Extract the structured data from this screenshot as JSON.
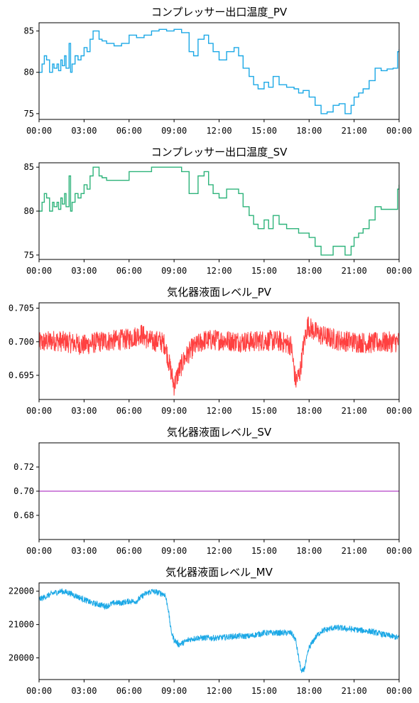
{
  "chart_data": [
    {
      "type": "line",
      "title": "コンプレッサー出口温度_PV",
      "xticks": [
        "00:00",
        "03:00",
        "06:00",
        "09:00",
        "12:00",
        "15:00",
        "18:00",
        "21:00",
        "00:00"
      ],
      "ylim": [
        74.3,
        86
      ],
      "yticks": [
        75,
        80,
        85
      ],
      "ytick_labels": [
        "75",
        "80",
        "85"
      ],
      "series": [
        {
          "color": "#1ba8e6",
          "kind": "step",
          "x": [
            0,
            0.2,
            0.35,
            0.5,
            0.7,
            0.9,
            1.0,
            1.2,
            1.3,
            1.45,
            1.55,
            1.7,
            1.8,
            2.0,
            2.1,
            2.2,
            2.4,
            2.6,
            2.8,
            3.0,
            3.2,
            3.4,
            3.6,
            4.0,
            4.2,
            4.5,
            5.0,
            5.5,
            6.0,
            6.5,
            7.0,
            7.5,
            8.0,
            8.5,
            9.0,
            9.5,
            10.0,
            10.3,
            10.6,
            11.0,
            11.3,
            11.6,
            12.0,
            12.5,
            13.0,
            13.3,
            13.6,
            14.0,
            14.3,
            14.6,
            15.0,
            15.3,
            15.6,
            16.0,
            16.5,
            17.0,
            17.3,
            17.6,
            18.0,
            18.4,
            18.8,
            19.2,
            19.6,
            20.0,
            20.4,
            20.8,
            21.0,
            21.3,
            21.6,
            22.0,
            22.4,
            22.8,
            23.2,
            23.6,
            23.9,
            24.0
          ],
          "y": [
            80,
            81,
            82,
            81.5,
            80,
            81,
            80.5,
            81,
            80.2,
            81.5,
            80.8,
            82,
            80.5,
            83.5,
            80,
            81,
            82,
            81.5,
            82,
            83,
            82.5,
            84,
            85,
            84,
            83.8,
            83.5,
            83.2,
            83.5,
            84.5,
            84.2,
            84.5,
            85,
            85.2,
            85,
            85.2,
            84.8,
            82.5,
            82,
            84,
            84.5,
            83.5,
            82.5,
            81.5,
            82.5,
            83,
            82,
            80.5,
            79.5,
            78.5,
            78,
            78.8,
            78.2,
            79.5,
            78.5,
            78.2,
            78,
            77.5,
            77.8,
            77,
            76,
            75,
            75.2,
            76,
            76.2,
            75,
            76,
            77,
            77.5,
            78,
            79,
            80.5,
            80.2,
            80.4,
            80.5,
            82.5,
            82.8
          ]
        }
      ]
    },
    {
      "type": "line",
      "title": "コンプレッサー出口温度_SV",
      "xticks": [
        "00:00",
        "03:00",
        "06:00",
        "09:00",
        "12:00",
        "15:00",
        "18:00",
        "21:00",
        "00:00"
      ],
      "ylim": [
        74.5,
        85.5
      ],
      "yticks": [
        75,
        80,
        85
      ],
      "ytick_labels": [
        "75",
        "80",
        "85"
      ],
      "series": [
        {
          "color": "#2db37a",
          "kind": "step",
          "x": [
            0,
            0.2,
            0.35,
            0.5,
            0.7,
            0.9,
            1.0,
            1.2,
            1.3,
            1.45,
            1.55,
            1.7,
            1.8,
            2.0,
            2.1,
            2.2,
            2.4,
            2.6,
            2.8,
            3.0,
            3.2,
            3.4,
            3.6,
            4.0,
            4.2,
            4.5,
            5.0,
            5.5,
            6.0,
            6.5,
            7.0,
            7.5,
            8.0,
            8.5,
            9.0,
            9.5,
            10.0,
            10.3,
            10.6,
            11.0,
            11.3,
            11.6,
            12.0,
            12.5,
            13.0,
            13.3,
            13.6,
            14.0,
            14.3,
            14.6,
            15.0,
            15.3,
            15.6,
            16.0,
            16.5,
            17.0,
            17.3,
            17.6,
            18.0,
            18.4,
            18.8,
            19.2,
            19.6,
            20.0,
            20.4,
            20.8,
            21.0,
            21.3,
            21.6,
            22.0,
            22.4,
            22.8,
            23.2,
            23.6,
            23.9,
            24.0
          ],
          "y": [
            80,
            81,
            82,
            81.5,
            80,
            81,
            80.5,
            81,
            80.2,
            81.5,
            80.8,
            82,
            80.5,
            84,
            80,
            81,
            82,
            81.5,
            82,
            83,
            82.5,
            84,
            85,
            84,
            83.8,
            83.5,
            83.5,
            83.5,
            84.5,
            84.5,
            84.5,
            85,
            85,
            85,
            85,
            84.5,
            82,
            82,
            84,
            84.5,
            83,
            82,
            81.5,
            82.5,
            82.5,
            82,
            80.5,
            79.5,
            78.5,
            78,
            79,
            78,
            79.5,
            78.5,
            78,
            78,
            77.5,
            77.5,
            77,
            76,
            75,
            75,
            76,
            76,
            75,
            76,
            77,
            77.5,
            78,
            79,
            80.5,
            80.2,
            80.2,
            80.2,
            82.5,
            83
          ]
        }
      ]
    },
    {
      "type": "line",
      "title": "気化器液面レベル_PV",
      "xticks": [
        "00:00",
        "03:00",
        "06:00",
        "09:00",
        "12:00",
        "15:00",
        "18:00",
        "21:00",
        "00:00"
      ],
      "ylim": [
        0.6914,
        0.7058
      ],
      "yticks": [
        0.695,
        0.7,
        0.705
      ],
      "ytick_labels": [
        "0.695",
        "0.700",
        "0.705"
      ],
      "series": [
        {
          "color": "#ff4040",
          "kind": "noisy",
          "noise": 0.0016,
          "x": [
            0,
            1,
            2,
            3,
            4,
            5,
            6,
            6.8,
            7.2,
            7.6,
            8.0,
            8.4,
            8.7,
            8.9,
            9.0,
            9.3,
            9.7,
            10.2,
            11,
            12,
            13,
            14,
            15,
            16,
            16.8,
            17.1,
            17.4,
            17.6,
            17.9,
            18.2,
            18.6,
            19,
            20,
            21,
            22,
            23,
            24
          ],
          "y": [
            0.6998,
            0.7002,
            0.6999,
            0.6995,
            0.7,
            0.7002,
            0.7004,
            0.7012,
            0.7004,
            0.7,
            0.7002,
            0.6996,
            0.6965,
            0.6945,
            0.6935,
            0.6955,
            0.6975,
            0.699,
            0.7002,
            0.7003,
            0.7001,
            0.7,
            0.7002,
            0.7001,
            0.6995,
            0.694,
            0.6955,
            0.699,
            0.7025,
            0.7018,
            0.7012,
            0.7008,
            0.7002,
            0.7,
            0.6998,
            0.6999,
            0.7
          ]
        }
      ]
    },
    {
      "type": "line",
      "title": "気化器液面レベル_SV",
      "xticks": [
        "00:00",
        "03:00",
        "06:00",
        "09:00",
        "12:00",
        "15:00",
        "18:00",
        "21:00",
        "00:00"
      ],
      "ylim": [
        0.66,
        0.74
      ],
      "yticks": [
        0.68,
        0.7,
        0.72
      ],
      "ytick_labels": [
        "0.68",
        "0.70",
        "0.72"
      ],
      "series": [
        {
          "color": "#c060d0",
          "kind": "line",
          "x": [
            0,
            24
          ],
          "y": [
            0.7,
            0.7
          ]
        }
      ]
    },
    {
      "type": "line",
      "title": "気化器液面レベル_MV",
      "xticks": [
        "00:00",
        "03:00",
        "06:00",
        "09:00",
        "12:00",
        "15:00",
        "18:00",
        "21:00",
        "00:00"
      ],
      "ylim": [
        19350,
        22250
      ],
      "yticks": [
        20000,
        21000,
        22000
      ],
      "ytick_labels": [
        "20000",
        "21000",
        "22000"
      ],
      "series": [
        {
          "color": "#1ba8e6",
          "kind": "noisy",
          "noise": 90,
          "x": [
            0,
            0.5,
            1.0,
            1.5,
            2.0,
            2.5,
            3.0,
            3.5,
            4.0,
            4.5,
            5.0,
            5.5,
            6.0,
            6.5,
            7.0,
            7.5,
            8.0,
            8.4,
            8.6,
            8.8,
            9.0,
            9.3,
            9.6,
            10.0,
            10.5,
            11,
            12,
            13,
            14,
            15,
            16,
            16.8,
            17.1,
            17.3,
            17.5,
            17.7,
            18.0,
            18.4,
            18.8,
            19.2,
            19.6,
            20,
            21,
            22,
            23,
            23.5,
            24
          ],
          "y": [
            21750,
            21850,
            21950,
            22000,
            21950,
            21850,
            21750,
            21650,
            21600,
            21550,
            21650,
            21650,
            21700,
            21700,
            21900,
            22000,
            21950,
            21900,
            21500,
            20800,
            20550,
            20400,
            20450,
            20550,
            20600,
            20600,
            20600,
            20650,
            20650,
            20750,
            20750,
            20750,
            20550,
            20000,
            19550,
            19700,
            20300,
            20600,
            20800,
            20850,
            20900,
            20900,
            20850,
            20800,
            20700,
            20650,
            20600
          ]
        }
      ]
    }
  ]
}
